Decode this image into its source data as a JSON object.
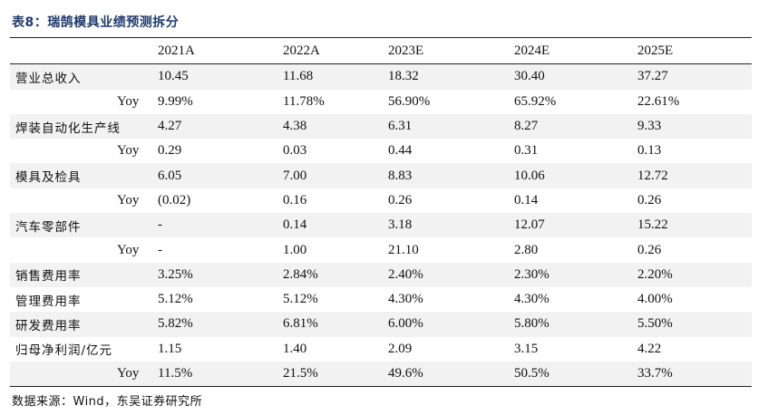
{
  "caption": "表8：瑞鹄模具业绩预测拆分",
  "header": [
    "2021A",
    "2022A",
    "2023E",
    "2024E",
    "2025E"
  ],
  "rows": [
    {
      "label": "营业总收入",
      "sub": false,
      "values": [
        "10.45",
        "11.68",
        "18.32",
        "30.40",
        "37.27"
      ]
    },
    {
      "label": "Yoy",
      "sub": true,
      "values": [
        "9.99%",
        "11.78%",
        "56.90%",
        "65.92%",
        "22.61%"
      ]
    },
    {
      "label": "焊装自动化生产线",
      "sub": false,
      "values": [
        "4.27",
        "4.38",
        "6.31",
        "8.27",
        "9.33"
      ]
    },
    {
      "label": "Yoy",
      "sub": true,
      "values": [
        "0.29",
        "0.03",
        "0.44",
        "0.31",
        "0.13"
      ]
    },
    {
      "label": "模具及检具",
      "sub": false,
      "values": [
        "6.05",
        "7.00",
        "8.83",
        "10.06",
        "12.72"
      ]
    },
    {
      "label": "Yoy",
      "sub": true,
      "values": [
        "(0.02)",
        "0.16",
        "0.26",
        "0.14",
        "0.26"
      ]
    },
    {
      "label": "汽车零部件",
      "sub": false,
      "values": [
        "-",
        "0.14",
        "3.18",
        "12.07",
        "15.22"
      ]
    },
    {
      "label": "Yoy",
      "sub": true,
      "values": [
        "-",
        "1.00",
        "21.10",
        "2.80",
        "0.26"
      ]
    },
    {
      "label": "销售费用率",
      "sub": false,
      "values": [
        "3.25%",
        "2.84%",
        "2.40%",
        "2.30%",
        "2.20%"
      ]
    },
    {
      "label": "管理费用率",
      "sub": false,
      "values": [
        "5.12%",
        "5.12%",
        "4.30%",
        "4.30%",
        "4.00%"
      ]
    },
    {
      "label": "研发费用率",
      "sub": false,
      "values": [
        "5.82%",
        "6.81%",
        "6.00%",
        "5.80%",
        "5.50%"
      ]
    },
    {
      "label": "归母净利润/亿元",
      "sub": false,
      "values": [
        "1.15",
        "1.40",
        "2.09",
        "3.15",
        "4.22"
      ]
    },
    {
      "label": "Yoy",
      "sub": true,
      "values": [
        "11.5%",
        "21.5%",
        "49.6%",
        "50.5%",
        "33.7%"
      ]
    }
  ],
  "source": "数据来源：Wind，东吴证券研究所"
}
